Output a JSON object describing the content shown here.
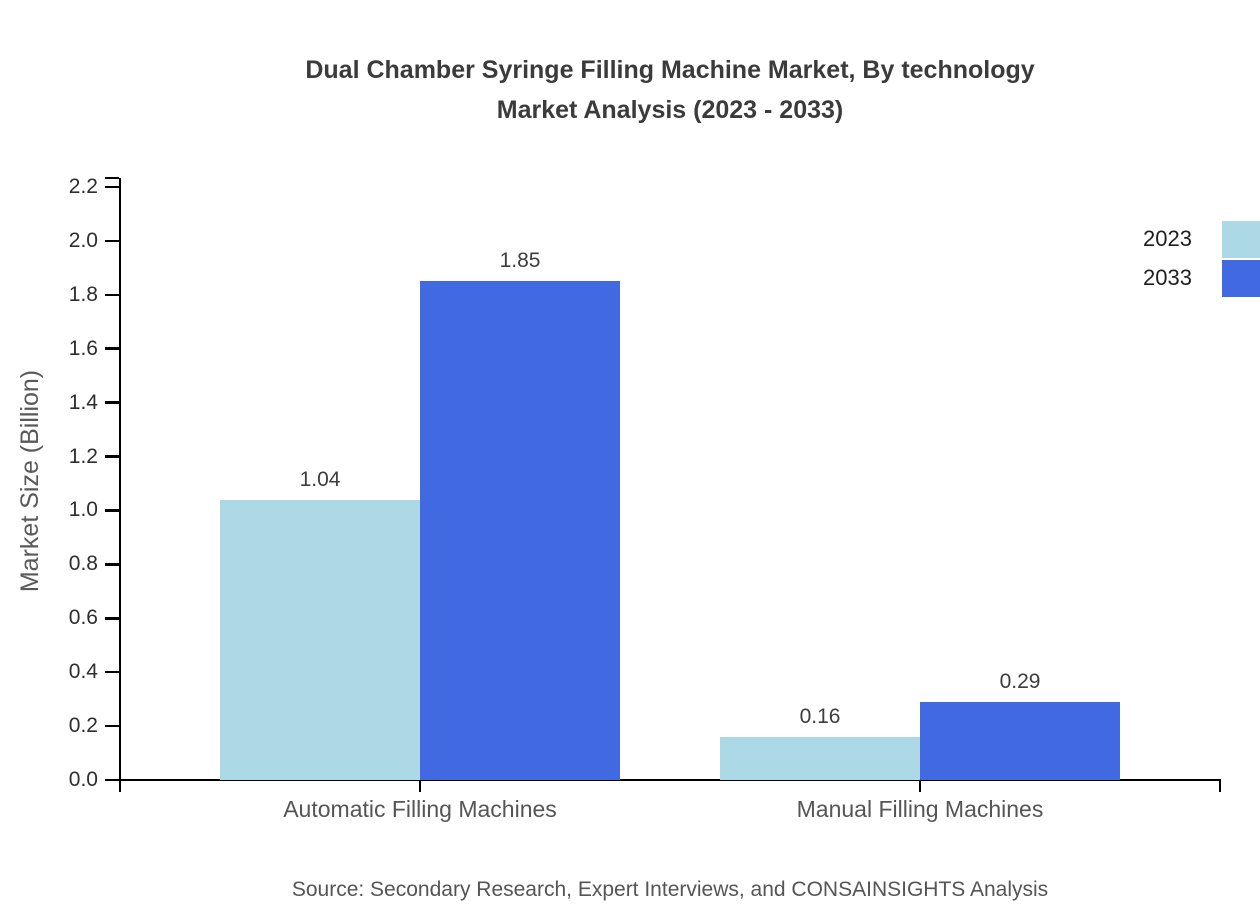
{
  "title": {
    "line1": "Dual Chamber Syringe Filling Machine Market, By technology",
    "line2": "Market Analysis (2023 - 2033)"
  },
  "chart_data": {
    "type": "bar",
    "title": "Dual Chamber Syringe Filling Machine Market, By technology Market Analysis (2023 - 2033)",
    "categories": [
      "Automatic Filling Machines",
      "Manual Filling Machines"
    ],
    "series": [
      {
        "name": "2023",
        "color": "#ADD8E6",
        "values": [
          1.04,
          0.16
        ],
        "value_labels": [
          "1.04",
          "0.16"
        ]
      },
      {
        "name": "2033",
        "color": "#4169E1",
        "values": [
          1.85,
          0.29
        ],
        "value_labels": [
          "1.85",
          "0.29"
        ]
      }
    ],
    "xlabel": "",
    "ylabel": "Market Size (Billion)",
    "ylim": [
      0,
      2.2
    ],
    "ytick_step": 0.2,
    "ytick_labels": [
      "0.0",
      "0.2",
      "0.4",
      "0.6",
      "0.8",
      "1.0",
      "1.2",
      "1.4",
      "1.6",
      "1.8",
      "2.0",
      "2.2"
    ],
    "grid": false,
    "legend_position": "top-right",
    "legend_entries": [
      "2023",
      "2033"
    ]
  },
  "source": "Source: Secondary Research, Expert Interviews, and CONSAINSIGHTS Analysis",
  "colors": {
    "series_2023": "#ADD8E6",
    "series_2033": "#4169E1",
    "axis": "#000000",
    "title_text": "#3b3b3b",
    "muted_text": "#555555",
    "background": "#ffffff"
  }
}
